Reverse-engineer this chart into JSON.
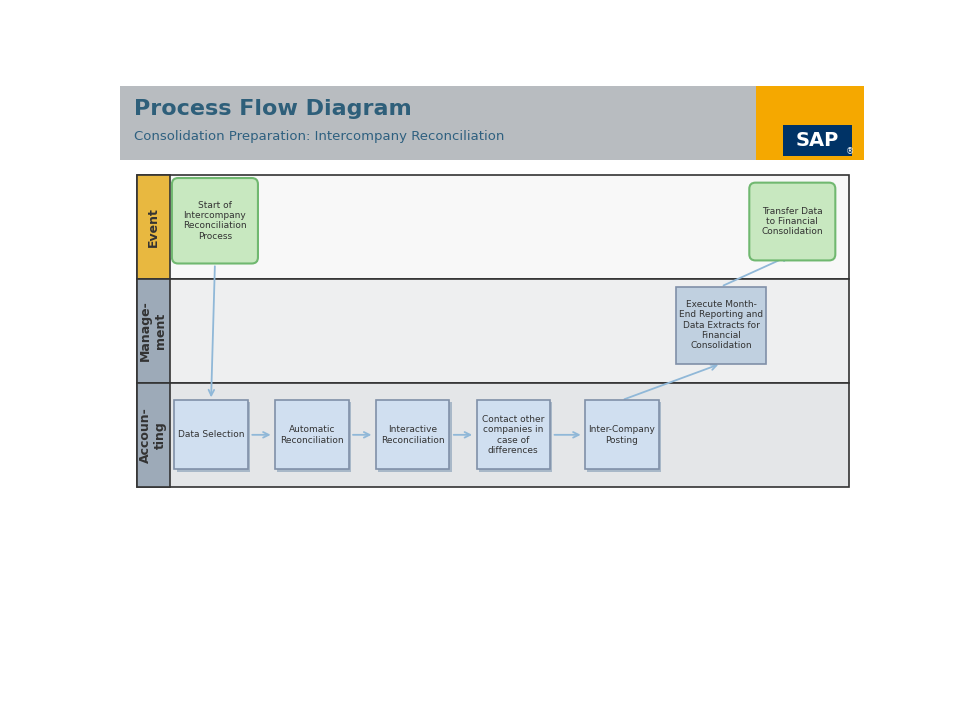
{
  "title": "Process Flow Diagram",
  "subtitle": "Consolidation Preparation: Intercompany Reconciliation",
  "title_color": "#2e5f7a",
  "subtitle_color": "#2e6080",
  "header_bg": "#b8bcc0",
  "sap_orange": "#f5a800",
  "sap_blue": "#003366",
  "lane_labels": [
    "Event",
    "Manage-\nment",
    "Accoun-\nting"
  ],
  "lane_label_bg_event": "#e8b840",
  "lane_label_bg_other": "#9daab8",
  "event_start": {
    "label": "Start of\nIntercompany\nReconciliation\nProcess",
    "fill": "#c8e8c0",
    "edge": "#70b870"
  },
  "event_end": {
    "label": "Transfer Data\nto Financial\nConsolidation",
    "fill": "#c8e8c0",
    "edge": "#70b870"
  },
  "mgmt_box": {
    "label": "Execute Month-\nEnd Reporting and\nData Extracts for\nFinancial\nConsolidation",
    "fill": "#c0d0e0",
    "edge": "#8090a8"
  },
  "accounting_boxes": [
    {
      "label": "Data Selection"
    },
    {
      "label": "Automatic\nReconciliation"
    },
    {
      "label": "Interactive\nReconciliation"
    },
    {
      "label": "Contact other\ncompanies in\ncase of\ndifferences"
    },
    {
      "label": "Inter-Company\nPosting"
    }
  ],
  "acct_fill": "#d0dff0",
  "acct_edge": "#8090a8",
  "arrow_color": "#90b8d8",
  "lane_bg_event": "#f8f8f8",
  "lane_bg_mgmt": "#eeeff0",
  "lane_bg_acct": "#e4e6e8",
  "outer_border": "#333333",
  "lane_border": "#333333"
}
